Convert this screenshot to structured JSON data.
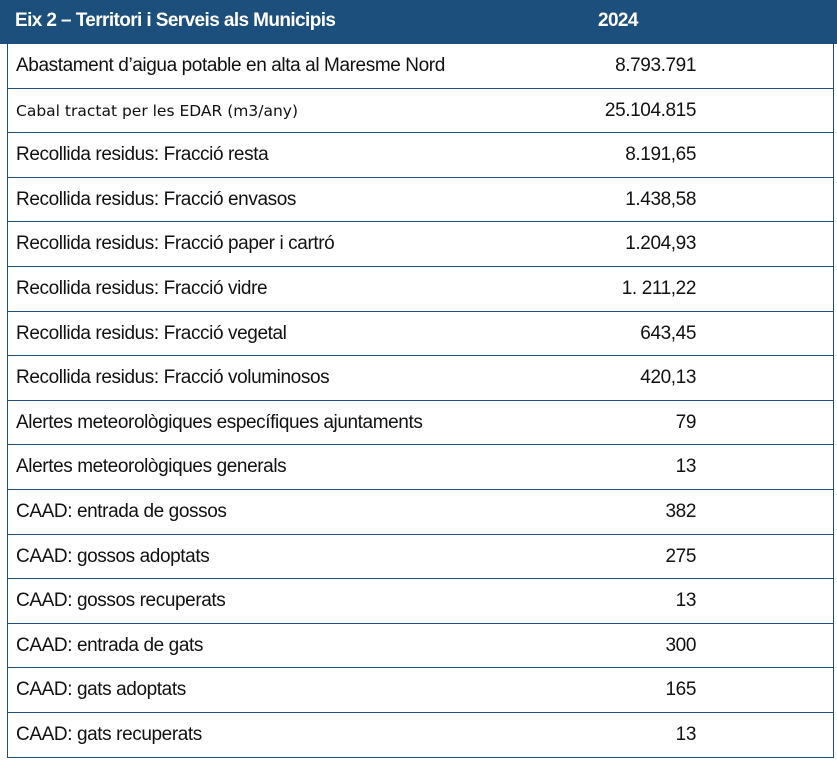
{
  "header": {
    "title": "Eix 2 – Territori i Serveis als Municipis",
    "year": "2024"
  },
  "table": {
    "rows": [
      [
        "Abastament d’aigua potable en alta al Maresme Nord",
        "8.793.791"
      ],
      [
        "Cabal tractat per les EDAR (m3/any)",
        "25.104.815"
      ],
      [
        "Recollida residus: Fracció resta",
        "8.191,65"
      ],
      [
        "Recollida residus: Fracció envasos",
        "1.438,58"
      ],
      [
        "Recollida residus: Fracció paper i cartró",
        "1.204,93"
      ],
      [
        "Recollida residus: Fracció vidre",
        "1. 211,22"
      ],
      [
        "Recollida residus: Fracció vegetal",
        "643,45"
      ],
      [
        "Recollida residus: Fracció voluminosos",
        "420,13"
      ],
      [
        "Alertes meteorològiques específiques ajuntaments",
        "79"
      ],
      [
        "Alertes meteorològiques generals",
        "13"
      ],
      [
        "CAAD: entrada de gossos",
        "382"
      ],
      [
        "CAAD: gossos adoptats",
        "275"
      ],
      [
        "CAAD: gossos recuperats",
        "13"
      ],
      [
        "CAAD: entrada de gats",
        "300"
      ],
      [
        "CAAD: gats adoptats",
        "165"
      ],
      [
        "CAAD: gats recuperats",
        "13"
      ]
    ]
  }
}
